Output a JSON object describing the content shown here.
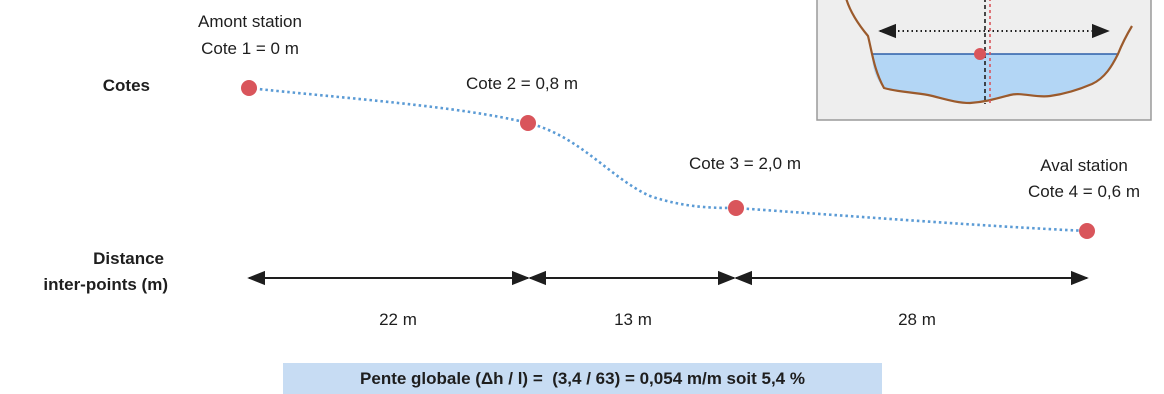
{
  "labels": {
    "cotes": "Cotes",
    "distance_line1": "Distance",
    "distance_line2": "inter-points (m)"
  },
  "points": [
    {
      "title": "Amont station",
      "value": "Cote 1 = 0 m"
    },
    {
      "title": "",
      "value": "Cote 2 = 0,8 m"
    },
    {
      "title": "",
      "value": "Cote 3 = 2,0 m"
    },
    {
      "title": "Aval station",
      "value": "Cote 4 = 0,6 m"
    }
  ],
  "distances": [
    "22 m",
    "13 m",
    "28 m"
  ],
  "formula": "Pente globale (Δh / l) =  (3,4 / 63) = 0,054 m/m soit 5,4 %",
  "colors": {
    "point": "#d9555b",
    "profile": "#5b9bd5",
    "water": "#b3d6f5",
    "riverbed": "#9b5a2c",
    "inset_bg": "#eeeeee",
    "formula_bg": "#c7dcf3"
  }
}
